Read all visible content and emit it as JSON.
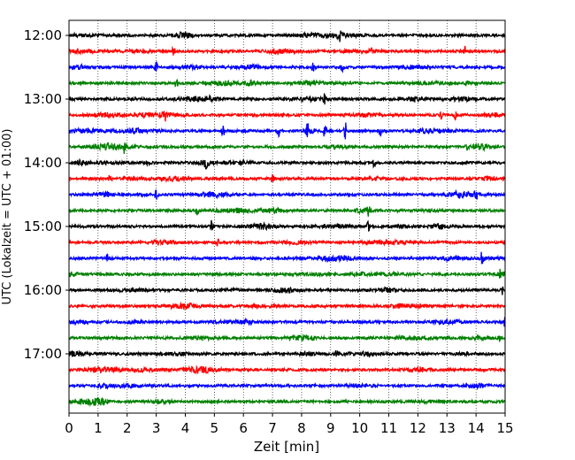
{
  "chart_data": {
    "type": "line",
    "title": "",
    "xlabel": "Zeit  [min]",
    "ylabel": "UTC (Lokalzeit = UTC + 01:00)",
    "xlim": [
      0,
      15
    ],
    "x_ticks": [
      "0",
      "1",
      "2",
      "3",
      "4",
      "5",
      "6",
      "7",
      "8",
      "9",
      "10",
      "11",
      "12",
      "13",
      "14",
      "15"
    ],
    "y_ticks": [
      "12:00",
      "13:00",
      "14:00",
      "15:00",
      "16:00",
      "17:00"
    ],
    "grid": {
      "x": true,
      "y": false,
      "style": "dotted"
    },
    "trace_minutes": 15,
    "trace_colors": [
      "#000000",
      "#ff0000",
      "#0000ff",
      "#008000"
    ],
    "traces": [
      {
        "start": "12:00",
        "color": "#000000"
      },
      {
        "start": "12:15",
        "color": "#ff0000"
      },
      {
        "start": "12:30",
        "color": "#0000ff"
      },
      {
        "start": "12:45",
        "color": "#008000"
      },
      {
        "start": "13:00",
        "color": "#000000"
      },
      {
        "start": "13:15",
        "color": "#ff0000"
      },
      {
        "start": "13:30",
        "color": "#0000ff"
      },
      {
        "start": "13:45",
        "color": "#008000"
      },
      {
        "start": "14:00",
        "color": "#000000"
      },
      {
        "start": "14:15",
        "color": "#ff0000"
      },
      {
        "start": "14:30",
        "color": "#0000ff"
      },
      {
        "start": "14:45",
        "color": "#008000"
      },
      {
        "start": "15:00",
        "color": "#000000"
      },
      {
        "start": "15:15",
        "color": "#ff0000"
      },
      {
        "start": "15:30",
        "color": "#0000ff"
      },
      {
        "start": "15:45",
        "color": "#008000"
      },
      {
        "start": "16:00",
        "color": "#000000"
      },
      {
        "start": "16:15",
        "color": "#ff0000"
      },
      {
        "start": "16:30",
        "color": "#0000ff"
      },
      {
        "start": "16:45",
        "color": "#008000"
      },
      {
        "start": "17:00",
        "color": "#000000"
      },
      {
        "start": "17:15",
        "color": "#ff0000"
      },
      {
        "start": "17:30",
        "color": "#0000ff"
      },
      {
        "start": "17:45",
        "color": "#008000"
      }
    ],
    "events": [
      {
        "trace": 0,
        "minute": 9.3,
        "amplitude": 1.0
      },
      {
        "trace": 1,
        "minute": 3.6,
        "amplitude": 1.0
      },
      {
        "trace": 1,
        "minute": 13.6,
        "amplitude": 1.0
      },
      {
        "trace": 2,
        "minute": 3.0,
        "amplitude": 0.9
      },
      {
        "trace": 2,
        "minute": 8.4,
        "amplitude": 1.0
      },
      {
        "trace": 2,
        "minute": 9.4,
        "amplitude": 0.9
      },
      {
        "trace": 3,
        "minute": 3.7,
        "amplitude": 0.8
      },
      {
        "trace": 3,
        "minute": 13.7,
        "amplitude": 0.9
      },
      {
        "trace": 4,
        "minute": 8.8,
        "amplitude": 1.0
      },
      {
        "trace": 5,
        "minute": 3.3,
        "amplitude": 0.8
      },
      {
        "trace": 5,
        "minute": 12.8,
        "amplitude": 0.8
      },
      {
        "trace": 5,
        "minute": 13.3,
        "amplitude": 1.0
      },
      {
        "trace": 6,
        "minute": 5.3,
        "amplitude": 1.0
      },
      {
        "trace": 6,
        "minute": 7.2,
        "amplitude": 1.0
      },
      {
        "trace": 6,
        "minute": 8.2,
        "amplitude": 1.2
      },
      {
        "trace": 6,
        "minute": 8.8,
        "amplitude": 1.6
      },
      {
        "trace": 6,
        "minute": 9.5,
        "amplitude": 1.8
      },
      {
        "trace": 6,
        "minute": 10.7,
        "amplitude": 1.0
      },
      {
        "trace": 7,
        "minute": 1.9,
        "amplitude": 0.9
      },
      {
        "trace": 7,
        "minute": 13.7,
        "amplitude": 0.8
      },
      {
        "trace": 8,
        "minute": 4.7,
        "amplitude": 0.8
      },
      {
        "trace": 8,
        "minute": 10.5,
        "amplitude": 0.8
      },
      {
        "trace": 9,
        "minute": 1.4,
        "amplitude": 0.7
      },
      {
        "trace": 9,
        "minute": 7.0,
        "amplitude": 0.7
      },
      {
        "trace": 10,
        "minute": 3.0,
        "amplitude": 0.8
      },
      {
        "trace": 10,
        "minute": 14.0,
        "amplitude": 0.9
      },
      {
        "trace": 11,
        "minute": 4.4,
        "amplitude": 0.9
      },
      {
        "trace": 11,
        "minute": 10.3,
        "amplitude": 0.8
      },
      {
        "trace": 12,
        "minute": 4.9,
        "amplitude": 1.0
      },
      {
        "trace": 12,
        "minute": 10.3,
        "amplitude": 0.9
      },
      {
        "trace": 13,
        "minute": 5.1,
        "amplitude": 0.7
      },
      {
        "trace": 14,
        "minute": 1.3,
        "amplitude": 0.8
      },
      {
        "trace": 14,
        "minute": 14.2,
        "amplitude": 1.0
      },
      {
        "trace": 15,
        "minute": 14.8,
        "amplitude": 0.8
      },
      {
        "trace": 16,
        "minute": 14.9,
        "amplitude": 0.8
      },
      {
        "trace": 18,
        "minute": 15.0,
        "amplitude": 1.0
      },
      {
        "trace": 19,
        "minute": 8.4,
        "amplitude": 0.6
      },
      {
        "trace": 19,
        "minute": 14.8,
        "amplitude": 0.7
      },
      {
        "trace": 20,
        "minute": 9.2,
        "amplitude": 0.6
      }
    ]
  }
}
